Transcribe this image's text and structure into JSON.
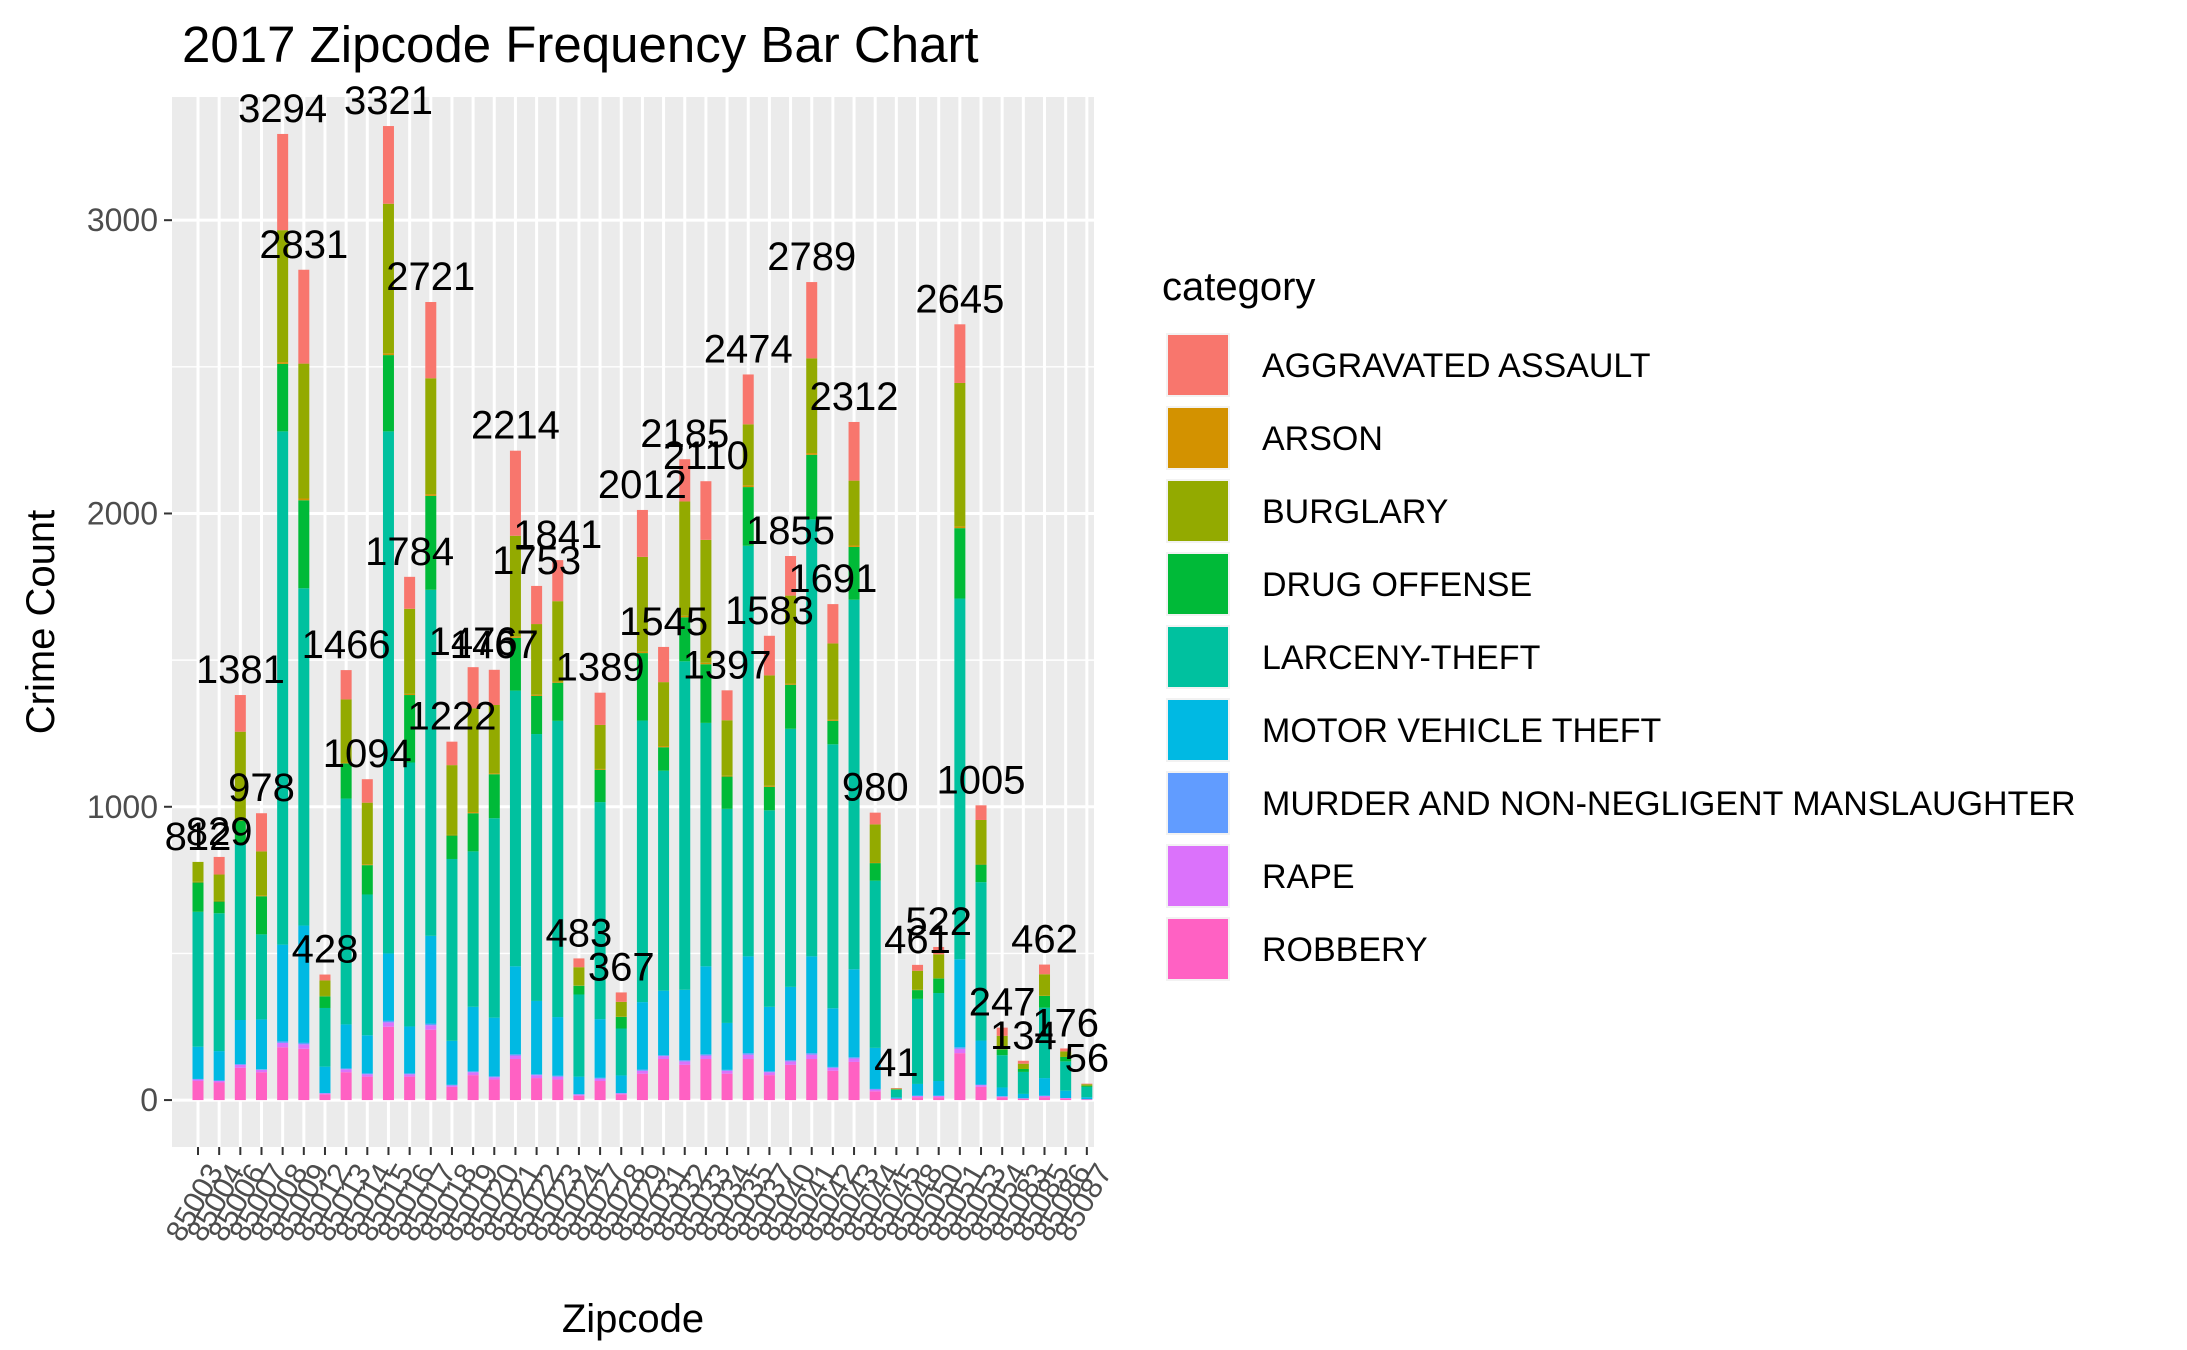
{
  "chart_data": {
    "type": "bar",
    "stacked": true,
    "title": "2017 Zipcode Frequency Bar Chart",
    "xlabel": "Zipcode",
    "ylabel": "Crime Count",
    "ylim": [
      -160,
      3420
    ],
    "yticks": [
      0,
      1000,
      2000,
      3000
    ],
    "grid": true,
    "legend": {
      "title": "category",
      "position": "right",
      "items": [
        {
          "label": "AGGRAVATED ASSAULT",
          "color": "#F8766D"
        },
        {
          "label": "ARSON",
          "color": "#D39200"
        },
        {
          "label": "BURGLARY",
          "color": "#93AA00"
        },
        {
          "label": "DRUG OFFENSE",
          "color": "#00BA38"
        },
        {
          "label": "LARCENY-THEFT",
          "color": "#00C19F"
        },
        {
          "label": "MOTOR VEHICLE THEFT",
          "color": "#00B9E3"
        },
        {
          "label": "MURDER AND NON-NEGLIGENT MANSLAUGHTER",
          "color": "#619CFF"
        },
        {
          "label": "RAPE",
          "color": "#DB72FB"
        },
        {
          "label": "ROBBERY",
          "color": "#FF61C3"
        }
      ]
    },
    "categories": [
      "85003",
      "85004",
      "85006",
      "85007",
      "85008",
      "85009",
      "85012",
      "85013",
      "85014",
      "85015",
      "85016",
      "85017",
      "85018",
      "85019",
      "85020",
      "85021",
      "85022",
      "85023",
      "85024",
      "85027",
      "85028",
      "85029",
      "85031",
      "85032",
      "85033",
      "85034",
      "85035",
      "85037",
      "85040",
      "85041",
      "85042",
      "85043",
      "85044",
      "85045",
      "85048",
      "85050",
      "85051",
      "85053",
      "85054",
      "85083",
      "85085",
      "85086",
      "85087"
    ],
    "totals": [
      812,
      829,
      1381,
      978,
      3294,
      2831,
      428,
      1466,
      1094,
      3321,
      1784,
      2721,
      1222,
      1476,
      1467,
      2214,
      1753,
      1841,
      483,
      1389,
      367,
      2012,
      1545,
      2185,
      2110,
      1397,
      2474,
      1583,
      1855,
      2789,
      1691,
      2312,
      980,
      41,
      461,
      522,
      2645,
      1005,
      247,
      134,
      462,
      176,
      56
    ],
    "series": [
      {
        "name": "ROBBERY",
        "values": [
          65,
          60,
          110,
          95,
          180,
          175,
          20,
          95,
          80,
          250,
          80,
          240,
          45,
          85,
          70,
          140,
          75,
          70,
          15,
          65,
          20,
          90,
          140,
          120,
          140,
          90,
          140,
          85,
          120,
          140,
          100,
          130,
          30,
          5,
          10,
          10,
          160,
          45,
          10,
          5,
          10,
          5,
          2
        ]
      },
      {
        "name": "RAPE",
        "values": [
          5,
          5,
          10,
          8,
          15,
          15,
          3,
          10,
          8,
          15,
          8,
          15,
          5,
          10,
          8,
          12,
          10,
          10,
          4,
          8,
          3,
          10,
          10,
          12,
          12,
          10,
          15,
          10,
          12,
          15,
          10,
          12,
          6,
          0,
          4,
          4,
          15,
          6,
          2,
          1,
          4,
          2,
          1
        ]
      },
      {
        "name": "MURDER AND NON-NEGLIGENT MANSLAUGHTER",
        "values": [
          2,
          2,
          3,
          2,
          5,
          5,
          1,
          3,
          3,
          5,
          3,
          5,
          2,
          3,
          3,
          4,
          3,
          3,
          1,
          3,
          1,
          4,
          3,
          4,
          4,
          3,
          5,
          3,
          4,
          5,
          3,
          4,
          2,
          0,
          1,
          1,
          5,
          2,
          1,
          0,
          1,
          0,
          0
        ]
      },
      {
        "name": "MOTOR VEHICLE THEFT",
        "values": [
          110,
          100,
          150,
          170,
          330,
          400,
          90,
          150,
          130,
          230,
          160,
          300,
          150,
          220,
          200,
          300,
          250,
          200,
          60,
          200,
          60,
          230,
          220,
          240,
          300,
          160,
          330,
          220,
          250,
          330,
          200,
          300,
          140,
          5,
          40,
          50,
          300,
          150,
          30,
          15,
          60,
          25,
          7
        ]
      },
      {
        "name": "LARCENY-THEFT",
        "values": [
          460,
          470,
          600,
          290,
          1750,
          1150,
          200,
          770,
          480,
          1780,
          900,
          1180,
          620,
          530,
          680,
          940,
          910,
          1010,
          280,
          740,
          160,
          960,
          750,
          1120,
          830,
          730,
          1400,
          670,
          880,
          1490,
          900,
          1260,
          570,
          25,
          290,
          300,
          1230,
          540,
          110,
          75,
          240,
          100,
          35
        ]
      },
      {
        "name": "DRUG OFFENSE",
        "values": [
          100,
          40,
          80,
          130,
          230,
          300,
          40,
          120,
          100,
          260,
          230,
          320,
          80,
          130,
          150,
          180,
          130,
          130,
          30,
          110,
          40,
          230,
          80,
          150,
          200,
          110,
          200,
          80,
          150,
          220,
          80,
          180,
          60,
          2,
          30,
          50,
          240,
          60,
          20,
          10,
          40,
          15,
          4
        ]
      },
      {
        "name": "ARSON",
        "values": [
          2,
          2,
          3,
          3,
          6,
          6,
          1,
          3,
          3,
          6,
          4,
          6,
          2,
          4,
          3,
          5,
          4,
          4,
          1,
          3,
          1,
          5,
          4,
          5,
          5,
          3,
          6,
          4,
          4,
          6,
          4,
          5,
          2,
          0,
          1,
          1,
          6,
          2,
          1,
          0,
          1,
          0,
          0
        ]
      },
      {
        "name": "BURGLARY",
        "values": [
          68,
          90,
          300,
          150,
          450,
          460,
          53,
          215,
          210,
          510,
          290,
          395,
          238,
          354,
          233,
          343,
          241,
          274,
          62,
          150,
          50,
          323,
          218,
          390,
          419,
          189,
          208,
          376,
          300,
          323,
          260,
          221,
          130,
          2,
          65,
          81,
          489,
          150,
          45,
          18,
          73,
          19,
          5
        ]
      },
      {
        "name": "AGGRAVATED ASSAULT",
        "values": [
          0,
          60,
          125,
          130,
          328,
          320,
          20,
          100,
          80,
          265,
          109,
          260,
          80,
          140,
          120,
          290,
          130,
          140,
          30,
          110,
          32,
          160,
          120,
          144,
          200,
          102,
          170,
          135,
          135,
          260,
          134,
          200,
          40,
          2,
          20,
          25,
          200,
          50,
          28,
          10,
          33,
          10,
          2
        ]
      }
    ]
  }
}
